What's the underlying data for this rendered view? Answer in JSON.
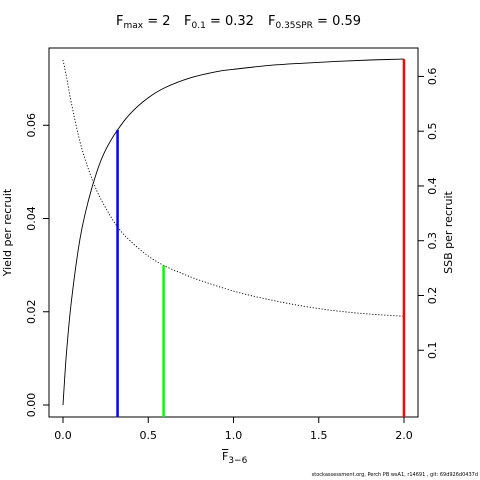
{
  "chart_data": {
    "type": "line",
    "title": {
      "fmax_main": "F",
      "fmax_sub": "max",
      "fmax_value": " = 2",
      "f01_main": "F",
      "f01_sub": "0.1",
      "f01_value": " = 0.32",
      "fspr_main": "F",
      "fspr_sub": "0.35SPR",
      "fspr_value": " = 0.59"
    },
    "xlabel_main": "F",
    "xlabel_sub": "3−6",
    "ylabel_left": "Yield per recruit",
    "ylabel_right": "SSB per recruit",
    "xlim": [
      0,
      2
    ],
    "ylim_left": [
      0,
      0.074
    ],
    "ylim_right": [
      0,
      0.63
    ],
    "x_ticks": [
      "0.0",
      "0.5",
      "1.0",
      "1.5",
      "2.0"
    ],
    "x_tick_values": [
      0,
      0.5,
      1.0,
      1.5,
      2.0
    ],
    "y_left_ticks": [
      "0.00",
      "0.02",
      "0.04",
      "0.06"
    ],
    "y_left_tick_values": [
      0,
      0.02,
      0.04,
      0.06
    ],
    "y_right_ticks": [
      "0.1",
      "0.2",
      "0.3",
      "0.4",
      "0.5",
      "0.6"
    ],
    "y_right_tick_values": [
      0.1,
      0.2,
      0.3,
      0.4,
      0.5,
      0.6
    ],
    "series": [
      {
        "axis": "left",
        "style": "solid",
        "x": [
          0,
          0.02,
          0.05,
          0.1,
          0.15,
          0.2,
          0.25,
          0.32,
          0.4,
          0.5,
          0.6,
          0.75,
          0.9,
          1.0,
          1.2,
          1.4,
          1.6,
          1.8,
          2.0
        ],
        "y": [
          0,
          0.011,
          0.0225,
          0.0357,
          0.044,
          0.0502,
          0.0547,
          0.059,
          0.0627,
          0.0659,
          0.0681,
          0.0702,
          0.0715,
          0.072,
          0.0728,
          0.0733,
          0.0737,
          0.074,
          0.0742
        ]
      },
      {
        "axis": "right",
        "style": "dotted",
        "x": [
          0,
          0.02,
          0.05,
          0.1,
          0.15,
          0.2,
          0.25,
          0.32,
          0.4,
          0.5,
          0.59,
          0.7,
          0.8,
          1.0,
          1.2,
          1.4,
          1.6,
          1.8,
          2.0
        ],
        "y": [
          0.63,
          0.6,
          0.55,
          0.48,
          0.43,
          0.39,
          0.36,
          0.325,
          0.298,
          0.272,
          0.255,
          0.24,
          0.228,
          0.208,
          0.193,
          0.181,
          0.172,
          0.166,
          0.162
        ]
      }
    ],
    "reference_lines": [
      {
        "x": 0.32,
        "y": 0.059,
        "axis": "left",
        "color": "#0000ff"
      },
      {
        "x": 0.59,
        "y": 0.255,
        "axis": "right",
        "color": "#00ff00"
      },
      {
        "x": 2.0,
        "y": 0.0742,
        "axis": "left",
        "color": "#ff0000"
      }
    ],
    "grid": false,
    "footnote": "stockassessment.org, Perch PB wsA1, r14691 , git: 69d926d0437d"
  }
}
